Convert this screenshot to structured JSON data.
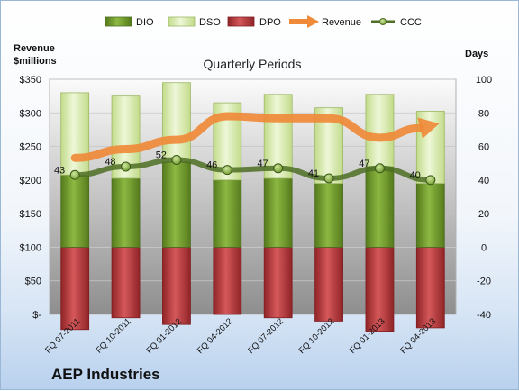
{
  "chart_data": {
    "type": "bar",
    "title": "Quarterly Periods",
    "company": "AEP Industries",
    "left_axis_label": [
      "Revenue",
      "$millions"
    ],
    "right_axis_label": "Days",
    "left_ticks": [
      "$-",
      "$50",
      "$100",
      "$150",
      "$200",
      "$250",
      "$300",
      "$350"
    ],
    "right_ticks": [
      "-40",
      "-20",
      "0",
      "20",
      "40",
      "60",
      "80",
      "100"
    ],
    "left_ylim": [
      0,
      350
    ],
    "right_ylim": [
      -40,
      100
    ],
    "categories": [
      "FQ 07-2011",
      "FQ 10-2011",
      "FQ 01-2012",
      "FQ 04-2012",
      "FQ 07-2012",
      "FQ 10-2012",
      "FQ 01-2013",
      "FQ 04-2013"
    ],
    "legend": [
      "DIO",
      "DSO",
      "DPO",
      "Revenue",
      "CCC"
    ],
    "series": [
      {
        "name": "DIO",
        "axis": "days",
        "color": "#6f9a2c",
        "values": [
          43,
          41,
          51,
          40,
          41,
          38,
          48,
          38
        ]
      },
      {
        "name": "DSO",
        "axis": "days",
        "color": "#d9ecb1",
        "values": [
          49,
          49,
          47,
          46,
          50,
          45,
          43,
          43
        ]
      },
      {
        "name": "DPO",
        "axis": "days",
        "color": "#b83a3d",
        "values": [
          -49,
          -42,
          -46,
          -40,
          -42,
          -44,
          -50,
          -48
        ]
      },
      {
        "name": "Revenue",
        "axis": "dollars",
        "color": "#ef8a38",
        "values": [
          233,
          246,
          260,
          295,
          292,
          292,
          263,
          281
        ]
      },
      {
        "name": "CCC",
        "axis": "days",
        "color": "#4e6f25",
        "values": [
          43,
          48,
          52,
          46,
          47,
          41,
          47,
          40
        ]
      }
    ],
    "ccc_labels": [
      "43",
      "48",
      "52",
      "46",
      "47",
      "41",
      "47",
      "40"
    ],
    "grid": true,
    "legend_position": "top"
  }
}
